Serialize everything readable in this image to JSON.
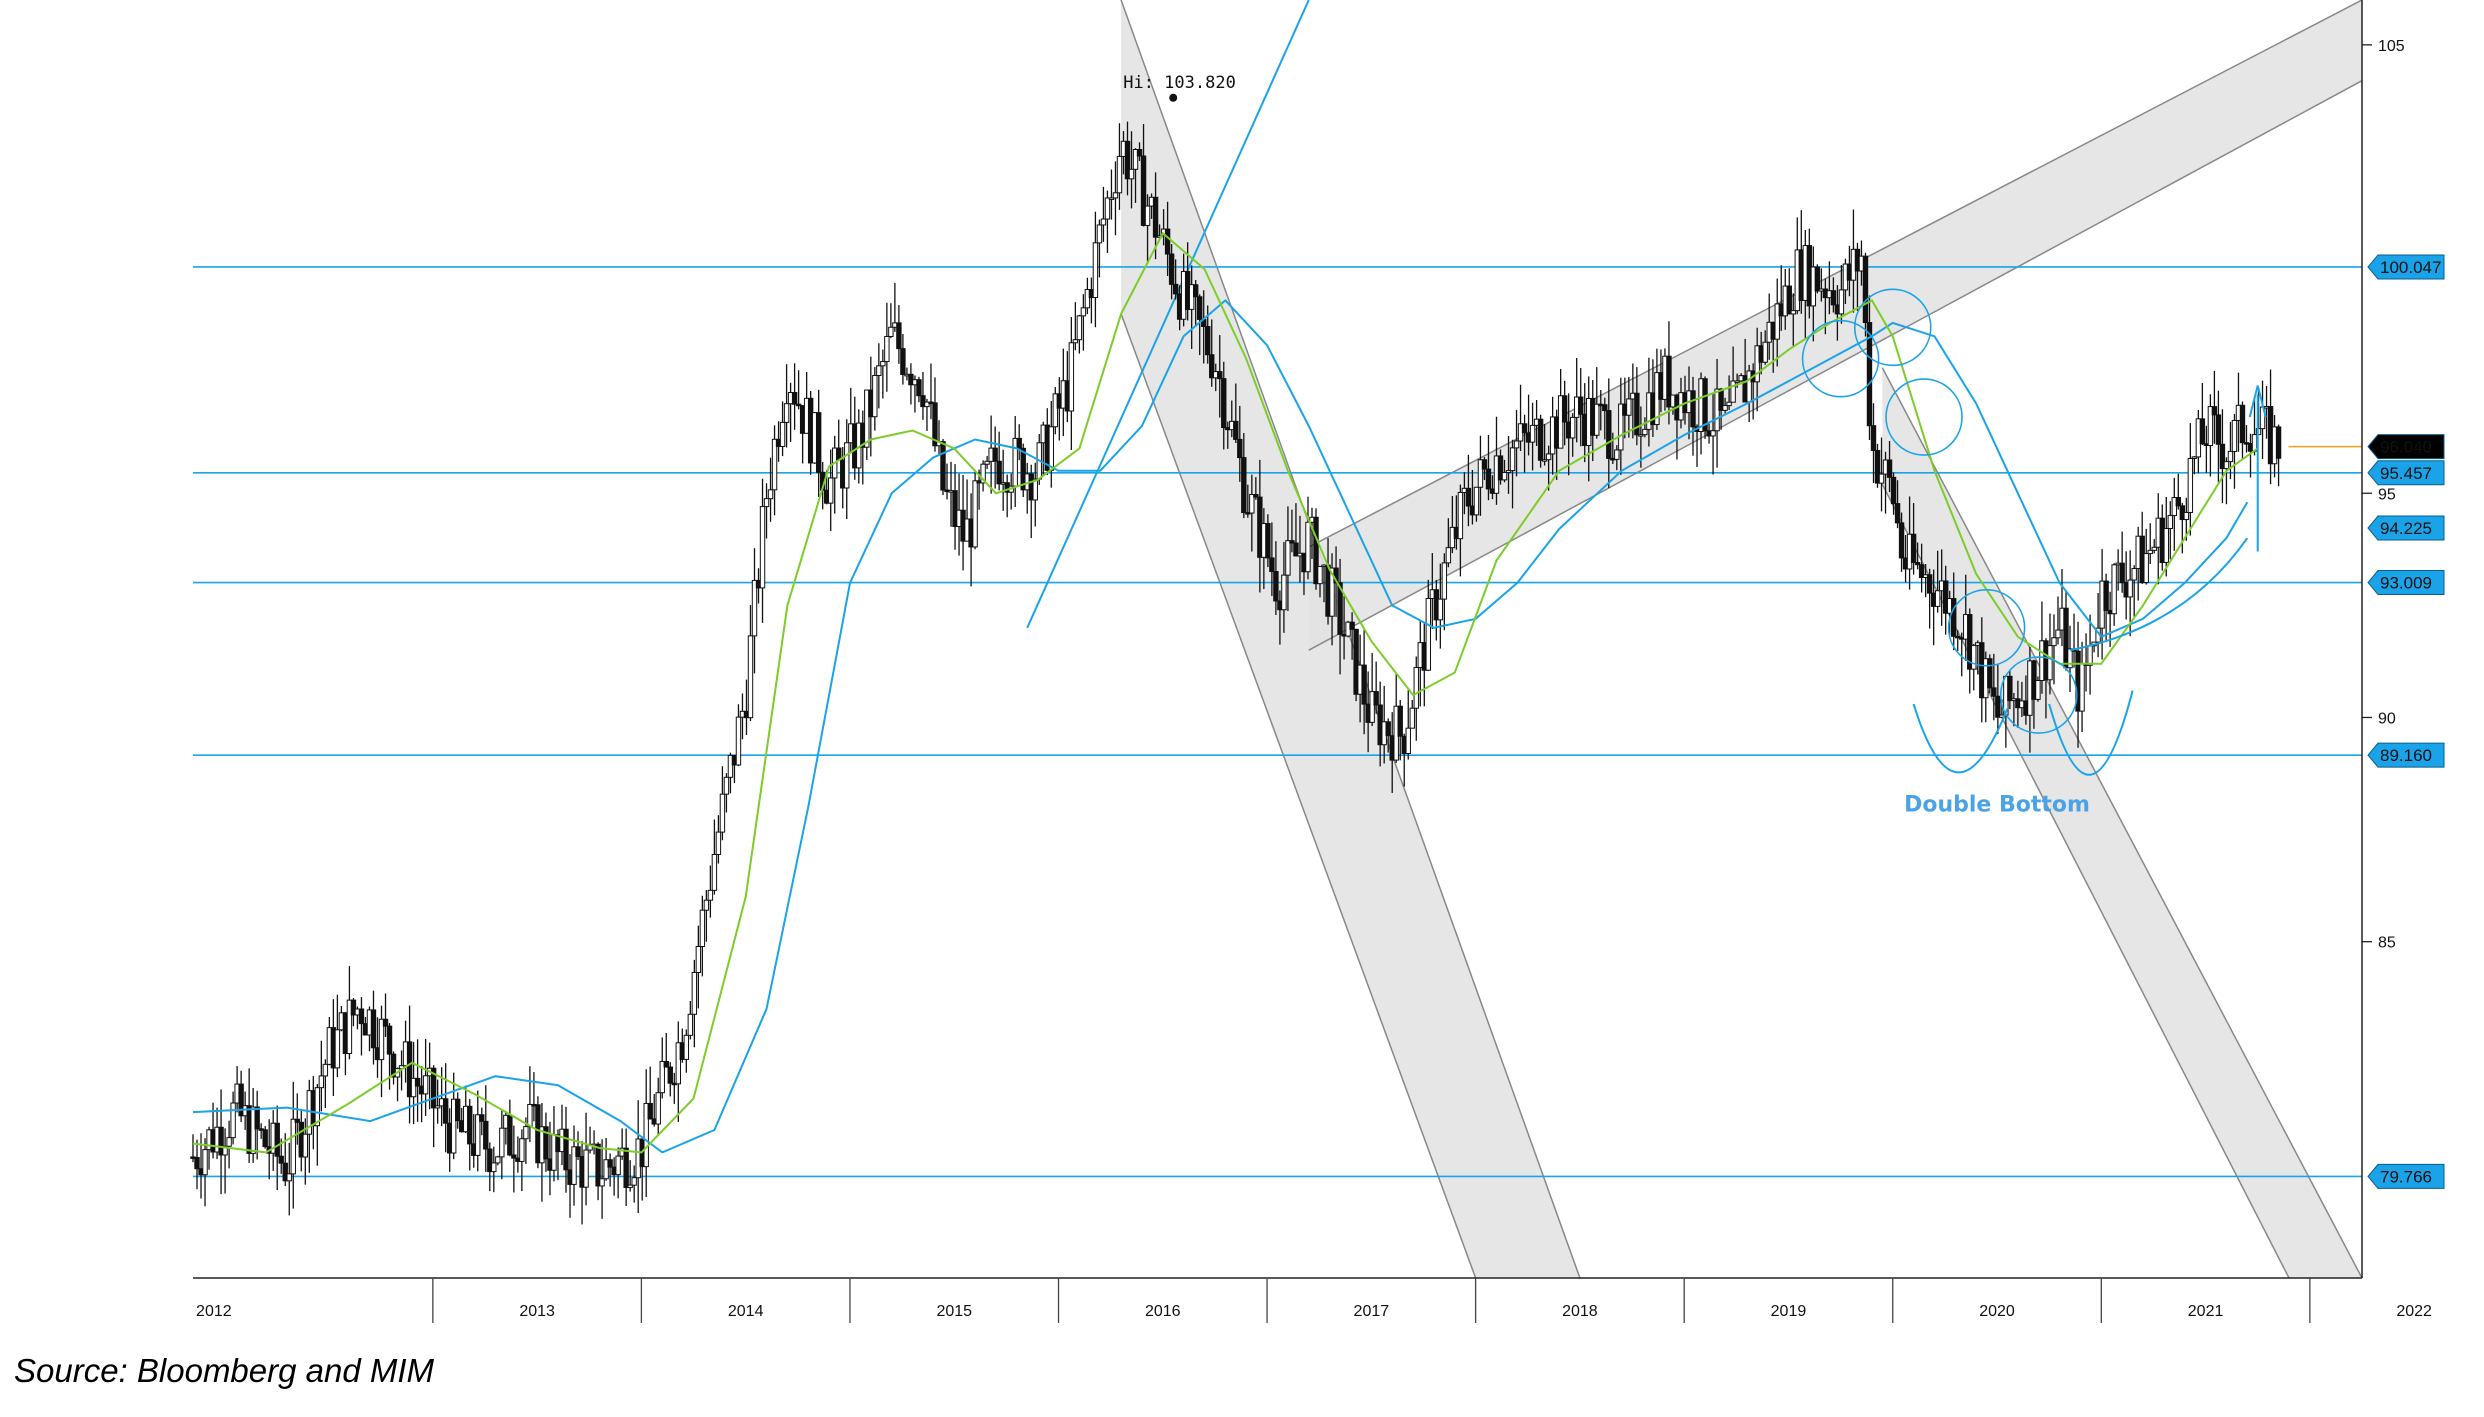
{
  "source_text": "Source: Bloomberg and MIM",
  "colors": {
    "level_line": "#1aa3e8",
    "badge_fill": "#1aa3e8",
    "last_badge_fill": "#000000",
    "ma_short": "#7ccc2a",
    "ma_long": "#1aa3e8",
    "channel_fill": "#e2e2e2",
    "candles": "#111111",
    "last_price_line": "#f0a020",
    "annotation_text": "#4aa3e8"
  },
  "chart_data": {
    "type": "candlestick",
    "title": "",
    "xlabel": "",
    "ylabel": "",
    "x_tick_labels": [
      "2012",
      "2013",
      "2014",
      "2015",
      "2016",
      "2017",
      "2018",
      "2019",
      "2020",
      "2021",
      "2022"
    ],
    "y_tick_labels": [
      "105",
      "95",
      "90",
      "85"
    ],
    "ylim": [
      77.5,
      106.0
    ],
    "xlim": [
      2011.85,
      2022.25
    ],
    "grid": false,
    "price_series": {
      "x": [
        2011.85,
        2012.05,
        2012.3,
        2012.5,
        2012.65,
        2012.9,
        2013.1,
        2013.3,
        2013.45,
        2013.6,
        2013.8,
        2014.0,
        2014.2,
        2014.35,
        2014.5,
        2014.6,
        2014.7,
        2014.8,
        2014.9,
        2015.05,
        2015.2,
        2015.35,
        2015.45,
        2015.55,
        2015.7,
        2015.9,
        2016.05,
        2016.2,
        2016.3,
        2016.45,
        2016.6,
        2016.75,
        2016.9,
        2017.05,
        2017.2,
        2017.35,
        2017.5,
        2017.65,
        2017.8,
        2017.95,
        2018.1,
        2018.3,
        2018.5,
        2018.7,
        2018.9,
        2019.05,
        2019.2,
        2019.4,
        2019.55,
        2019.75,
        2019.85,
        2019.9,
        2020.0,
        2020.05,
        2020.2,
        2020.35,
        2020.5,
        2020.65,
        2020.8,
        2020.9,
        2021.0,
        2021.2,
        2021.35,
        2021.5,
        2021.6,
        2021.7,
        2021.85
      ],
      "y": [
        80.2,
        81.2,
        80.0,
        82.5,
        83.6,
        82.0,
        80.8,
        80.4,
        80.9,
        80.2,
        79.9,
        80.4,
        83.0,
        87.0,
        90.5,
        95.0,
        97.8,
        96.5,
        95.2,
        96.2,
        98.5,
        97.5,
        95.0,
        94.0,
        95.8,
        95.5,
        97.5,
        100.8,
        102.8,
        101.2,
        99.3,
        98.0,
        95.0,
        93.0,
        94.0,
        92.2,
        90.0,
        89.6,
        92.5,
        94.8,
        95.8,
        96.3,
        96.8,
        96.3,
        97.5,
        97.0,
        96.5,
        98.5,
        100.0,
        99.5,
        100.3,
        96.0,
        95.0,
        93.5,
        93.0,
        92.0,
        90.0,
        90.8,
        92.0,
        90.5,
        92.8,
        93.5,
        94.5,
        96.4,
        96.0,
        96.6,
        96.04
      ]
    },
    "ma_short_series": {
      "x": [
        2011.85,
        2012.2,
        2012.6,
        2012.9,
        2013.2,
        2013.5,
        2013.8,
        2014.0,
        2014.25,
        2014.5,
        2014.7,
        2014.9,
        2015.1,
        2015.3,
        2015.5,
        2015.7,
        2015.9,
        2016.1,
        2016.3,
        2016.5,
        2016.7,
        2016.9,
        2017.1,
        2017.3,
        2017.5,
        2017.7,
        2017.9,
        2018.1,
        2018.4,
        2018.7,
        2019.0,
        2019.3,
        2019.5,
        2019.7,
        2019.9,
        2020.0,
        2020.2,
        2020.4,
        2020.6,
        2020.8,
        2021.0,
        2021.2,
        2021.4,
        2021.6,
        2021.75
      ],
      "y": [
        80.5,
        80.3,
        81.4,
        82.3,
        81.6,
        80.8,
        80.4,
        80.3,
        81.5,
        86.0,
        92.5,
        95.6,
        96.2,
        96.4,
        96.0,
        95.0,
        95.3,
        96.0,
        99.0,
        100.8,
        100.0,
        98.0,
        95.5,
        93.3,
        91.7,
        90.5,
        91.0,
        93.5,
        95.5,
        96.3,
        97.0,
        97.5,
        98.2,
        98.8,
        99.3,
        98.5,
        95.5,
        93.2,
        91.8,
        91.2,
        91.2,
        92.5,
        94.0,
        95.5,
        96.0
      ]
    },
    "ma_long_series": {
      "x": [
        2011.85,
        2012.3,
        2012.7,
        2013.0,
        2013.3,
        2013.6,
        2013.9,
        2014.1,
        2014.35,
        2014.6,
        2014.8,
        2015.0,
        2015.2,
        2015.4,
        2015.6,
        2015.8,
        2016.0,
        2016.2,
        2016.4,
        2016.6,
        2016.8,
        2017.0,
        2017.2,
        2017.4,
        2017.6,
        2017.8,
        2018.0,
        2018.2,
        2018.4,
        2018.7,
        2019.0,
        2019.3,
        2019.5,
        2019.7,
        2019.9,
        2020.0,
        2020.2,
        2020.4,
        2020.6,
        2020.8,
        2021.0,
        2021.2,
        2021.4,
        2021.6,
        2021.7
      ],
      "y": [
        81.2,
        81.3,
        81.0,
        81.5,
        82.0,
        81.8,
        81.0,
        80.3,
        80.8,
        83.5,
        88.0,
        93.0,
        95.0,
        95.8,
        96.2,
        96.0,
        95.5,
        95.5,
        96.5,
        98.5,
        99.3,
        98.3,
        96.5,
        94.5,
        92.5,
        92.0,
        92.2,
        93.0,
        94.2,
        95.5,
        96.3,
        97.0,
        97.5,
        98.0,
        98.5,
        98.8,
        98.5,
        97.0,
        95.0,
        93.0,
        91.8,
        92.2,
        93.0,
        94.0,
        94.8
      ]
    },
    "horizontal_levels": [
      100.047,
      95.457,
      93.009,
      89.16,
      79.766
    ],
    "badge_labels": [
      "100.047",
      "95.457",
      "94.225",
      "93.009",
      "89.160",
      "79.766"
    ],
    "badge_values": [
      100.047,
      95.457,
      94.225,
      93.009,
      89.16,
      79.766
    ],
    "last_price": 96.04,
    "last_price_label": "96.040",
    "high_annotation": "Hi: 103.820",
    "high_value": 103.82,
    "high_x": 2016.55,
    "text_annotation": "Double Bottom",
    "channels": [
      {
        "edge1": [
          [
            2016.3,
            106.0
          ],
          [
            2018.5,
            77.5
          ]
        ],
        "edge2": [
          [
            2016.3,
            99.0
          ],
          [
            2018.0,
            77.5
          ]
        ]
      },
      {
        "edge1": [
          [
            2017.2,
            93.8
          ],
          [
            2022.25,
            106.0
          ]
        ],
        "edge2": [
          [
            2017.2,
            91.5
          ],
          [
            2022.25,
            104.2
          ]
        ]
      },
      {
        "edge1": [
          [
            2019.95,
            97.8
          ],
          [
            2022.25,
            77.5
          ]
        ],
        "edge2": [
          [
            2019.95,
            95.2
          ],
          [
            2021.9,
            77.5
          ]
        ]
      }
    ],
    "trend_lines": [
      {
        "from": [
          2015.85,
          92.0
        ],
        "to": [
          2017.2,
          106.0
        ]
      }
    ]
  }
}
